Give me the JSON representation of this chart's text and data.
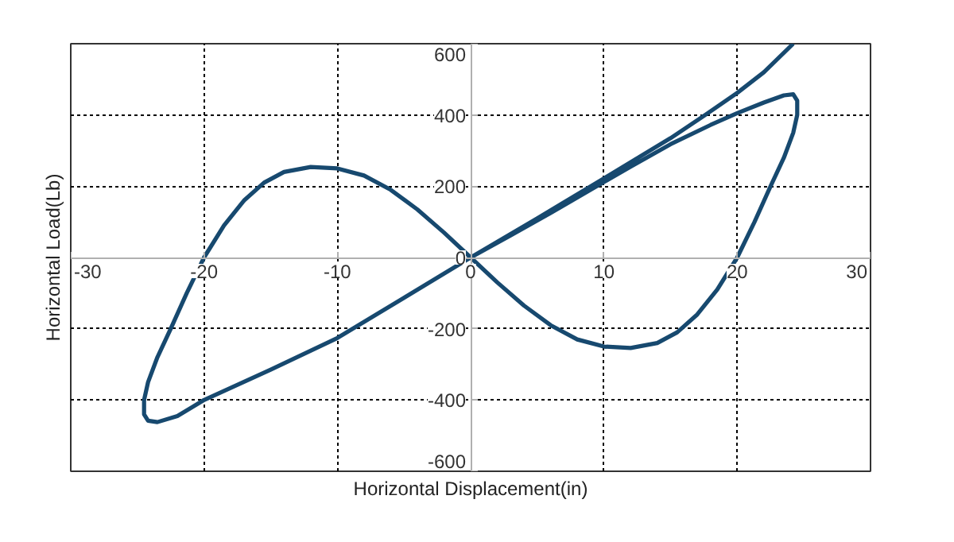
{
  "chart_data": {
    "type": "line",
    "xlabel": "Horizontal Displacement(in)",
    "ylabel": "Horizontal Load(Lb)",
    "xlim": [
      -30,
      30
    ],
    "ylim": [
      -600,
      600
    ],
    "xticks": [
      -30,
      -20,
      -10,
      0,
      10,
      20,
      30
    ],
    "yticks": [
      -600,
      -400,
      -200,
      0,
      200,
      400,
      600
    ],
    "grid": true,
    "marker": "none",
    "line_style": "solid",
    "series": [
      {
        "color": "#17496f",
        "x": [
          0,
          3,
          6,
          9,
          12,
          15,
          18,
          20,
          22,
          23.5,
          24.2,
          24.5,
          24.5,
          24.2,
          23.5,
          22.5,
          21.3,
          20,
          18.5,
          17,
          15.5,
          14,
          12,
          10,
          8,
          6,
          4,
          2,
          0,
          -2,
          -4,
          -6,
          -8,
          -10,
          -12,
          -14,
          -15.5,
          -17,
          -18.5,
          -20,
          -21.3,
          -22.5,
          -23.5,
          -24.2,
          -24.5,
          -24.5,
          -24.2,
          -23.5,
          -22,
          -20,
          -15,
          -10,
          -5,
          0,
          5,
          10,
          15,
          17.6,
          20,
          22,
          24.2
        ],
        "values": [
          0,
          62,
          125,
          190,
          255,
          318,
          372,
          405,
          435,
          455,
          458,
          440,
          400,
          350,
          280,
          200,
          100,
          0,
          -90,
          -160,
          -210,
          -240,
          -254,
          -250,
          -230,
          -190,
          -135,
          -70,
          0,
          70,
          135,
          190,
          230,
          250,
          254,
          240,
          210,
          160,
          90,
          0,
          -100,
          -200,
          -280,
          -350,
          -400,
          -440,
          -458,
          -462,
          -445,
          -400,
          -315,
          -226,
          -113,
          0,
          110,
          222,
          335,
          400,
          462,
          520,
          600
        ]
      }
    ]
  }
}
